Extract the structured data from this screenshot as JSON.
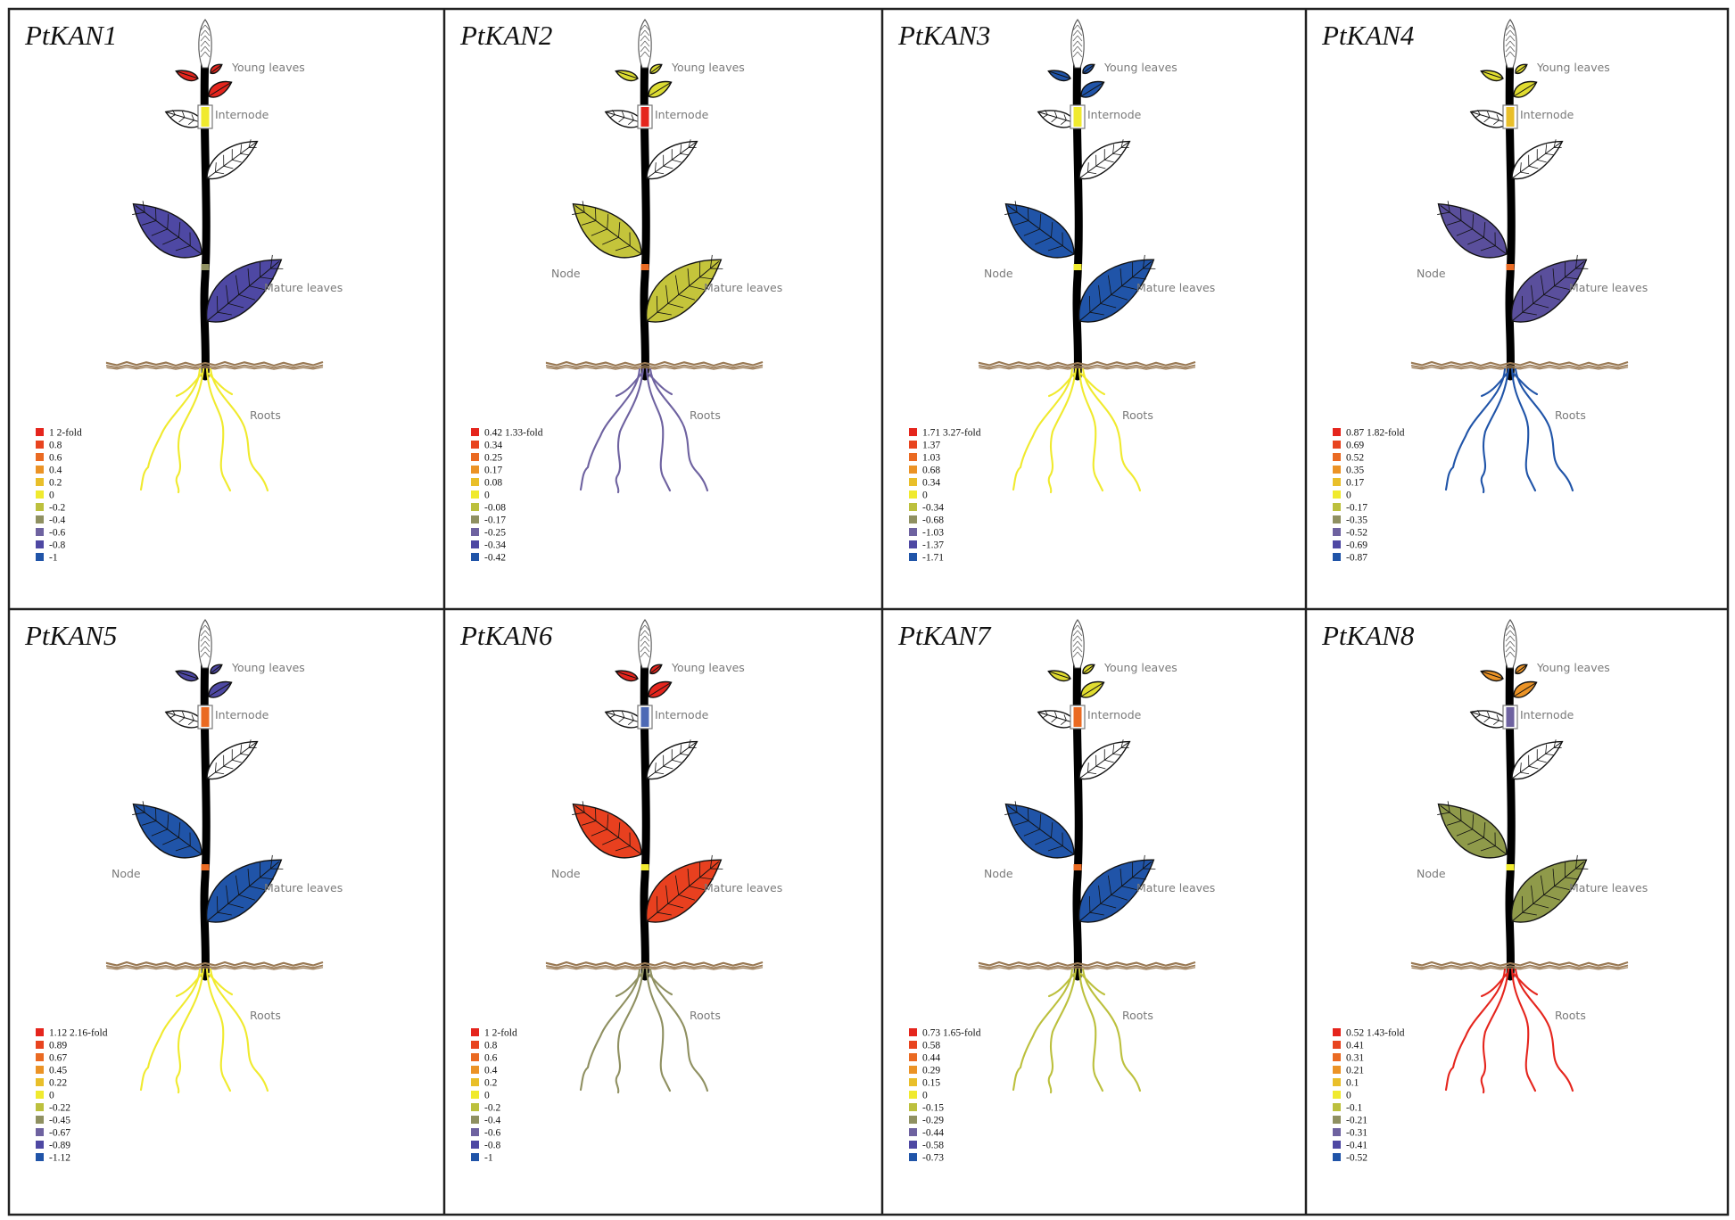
{
  "labels": {
    "young_leaves": "Young leaves",
    "internode": "Internode",
    "node": "Node",
    "mature_leaves": "Mature leaves",
    "roots": "Roots"
  },
  "palette": [
    "#e5251d",
    "#e8441f",
    "#ea6a22",
    "#eb9326",
    "#e9bf2a",
    "#f0ea2e",
    "#bcc03d",
    "#8f9061",
    "#6e62a0",
    "#4e48a3",
    "#2054a8"
  ],
  "panels": [
    {
      "title": "PtKAN1",
      "show_node_label": false,
      "legend": [
        "1 2-fold",
        "0.8",
        "0.6",
        "0.4",
        "0.2",
        "0",
        "-0.2",
        "-0.4",
        "-0.6",
        "-0.8",
        "-1"
      ],
      "colors": {
        "young_leaves": "#e5251d",
        "internode": "#f0ea2e",
        "node": "#8f9061",
        "mature_leaves": "#4e48a3",
        "roots": "#f0ea2e"
      }
    },
    {
      "title": "PtKAN2",
      "show_node_label": true,
      "legend": [
        "0.42 1.33-fold",
        "0.34",
        "0.25",
        "0.17",
        "0.08",
        "0",
        "-0.08",
        "-0.17",
        "-0.25",
        "-0.34",
        "-0.42"
      ],
      "colors": {
        "young_leaves": "#dcdc33",
        "internode": "#e5251d",
        "node": "#ea6a22",
        "mature_leaves": "#c4c43b",
        "roots": "#6e62a0"
      }
    },
    {
      "title": "PtKAN3",
      "show_node_label": true,
      "legend": [
        "1.71 3.27-fold",
        "1.37",
        "1.03",
        "0.68",
        "0.34",
        "0",
        "-0.34",
        "-0.68",
        "-1.03",
        "-1.37",
        "-1.71"
      ],
      "colors": {
        "young_leaves": "#2054a8",
        "internode": "#f0ea2e",
        "node": "#f0ea2e",
        "mature_leaves": "#2054a8",
        "roots": "#f0ea2e"
      }
    },
    {
      "title": "PtKAN4",
      "show_node_label": true,
      "legend": [
        "0.87 1.82-fold",
        "0.69",
        "0.52",
        "0.35",
        "0.17",
        "0",
        "-0.17",
        "-0.35",
        "-0.52",
        "-0.69",
        "-0.87"
      ],
      "colors": {
        "young_leaves": "#e0dc30",
        "internode": "#e9bf2a",
        "node": "#ea6a22",
        "mature_leaves": "#5a4f9c",
        "roots": "#2054a8"
      }
    },
    {
      "title": "PtKAN5",
      "show_node_label": true,
      "legend": [
        "1.12 2.16-fold",
        "0.89",
        "0.67",
        "0.45",
        "0.22",
        "0",
        "-0.22",
        "-0.45",
        "-0.67",
        "-0.89",
        "-1.12"
      ],
      "colors": {
        "young_leaves": "#4e48a3",
        "internode": "#ea6a22",
        "node": "#ea6a22",
        "mature_leaves": "#2054a8",
        "roots": "#f0ea2e"
      }
    },
    {
      "title": "PtKAN6",
      "show_node_label": true,
      "legend": [
        "1 2-fold",
        "0.8",
        "0.6",
        "0.4",
        "0.2",
        "0",
        "-0.2",
        "-0.4",
        "-0.6",
        "-0.8",
        "-1"
      ],
      "colors": {
        "young_leaves": "#e5251d",
        "internode": "#4e6ab5",
        "node": "#f0ea2e",
        "mature_leaves": "#e8401f",
        "roots": "#8f9061"
      }
    },
    {
      "title": "PtKAN7",
      "show_node_label": true,
      "legend": [
        "0.73 1.65-fold",
        "0.58",
        "0.44",
        "0.29",
        "0.15",
        "0",
        "-0.15",
        "-0.29",
        "-0.44",
        "-0.58",
        "-0.73"
      ],
      "colors": {
        "young_leaves": "#e0dc30",
        "internode": "#ea6a22",
        "node": "#ea6a22",
        "mature_leaves": "#2054a8",
        "roots": "#bcc03d"
      }
    },
    {
      "title": "PtKAN8",
      "show_node_label": true,
      "legend": [
        "0.52 1.43-fold",
        "0.41",
        "0.31",
        "0.21",
        "0.1",
        "0",
        "-0.1",
        "-0.21",
        "-0.31",
        "-0.41",
        "-0.52"
      ],
      "colors": {
        "young_leaves": "#eb9326",
        "internode": "#6e62a0",
        "node": "#f0ea2e",
        "mature_leaves": "#8f9a4a",
        "roots": "#e5251d"
      }
    }
  ]
}
